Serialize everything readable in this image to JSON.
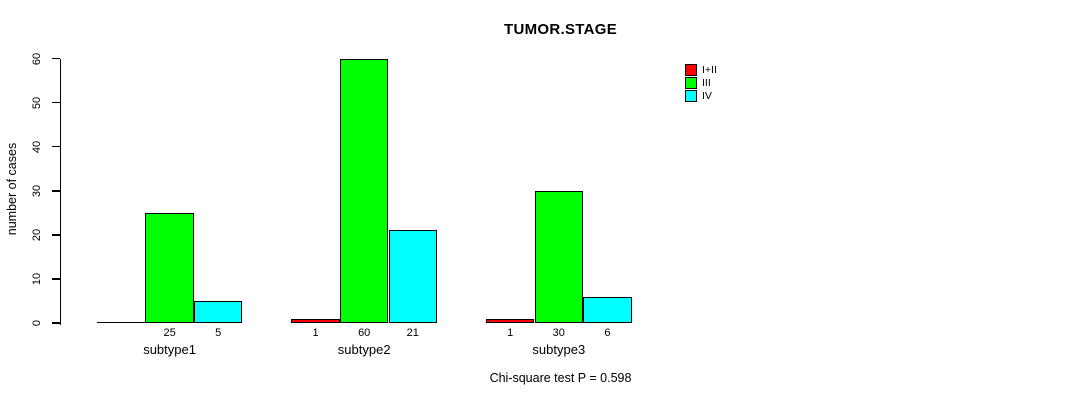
{
  "window": {
    "background": "#ffffff"
  },
  "chart_data": {
    "type": "bar",
    "title": "TUMOR.STAGE",
    "ylabel": "number of cases",
    "xlabel": "",
    "footer": "Chi-square test P = 0.598",
    "categories": [
      "subtype1",
      "subtype2",
      "subtype3"
    ],
    "series": [
      {
        "name": "I+II",
        "color": "#FF0000",
        "values": [
          0,
          1,
          1
        ]
      },
      {
        "name": "III",
        "color": "#00FF00",
        "values": [
          25,
          60,
          30
        ]
      },
      {
        "name": "IV",
        "color": "#00FFFF",
        "values": [
          5,
          21,
          6
        ]
      }
    ],
    "bar_labels": [
      [
        "",
        "25",
        "5"
      ],
      [
        "1",
        "60",
        "21"
      ],
      [
        "1",
        "30",
        "6"
      ]
    ],
    "ylim": [
      0,
      60
    ],
    "yticks": [
      0,
      10,
      20,
      30,
      40,
      50,
      60
    ],
    "grid": false,
    "legend": {
      "position": "top-right",
      "entries": [
        "I+II",
        "III",
        "IV"
      ]
    },
    "bar_border_color": "#000000",
    "axis_color": "#000000"
  }
}
